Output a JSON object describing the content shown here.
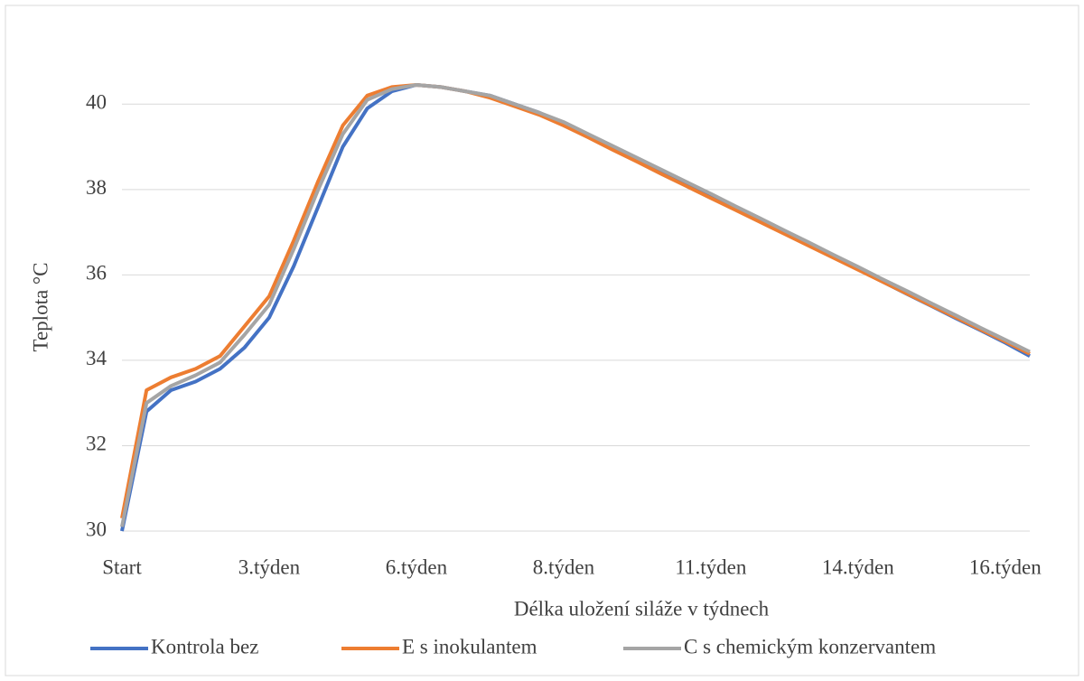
{
  "chart_data": {
    "type": "line",
    "x_label": "Délka uložení siláže v týdnech",
    "y_label": "Teplota °C",
    "categories": [
      "Start",
      null,
      null,
      null,
      null,
      null,
      "3.týden",
      null,
      null,
      null,
      null,
      null,
      "6.týden",
      null,
      null,
      null,
      null,
      null,
      "8.týden",
      null,
      null,
      null,
      null,
      null,
      "11.týden",
      null,
      null,
      null,
      null,
      null,
      "14.týden",
      null,
      null,
      null,
      null,
      null,
      "16.týden",
      null
    ],
    "series": [
      {
        "name": "Kontrola bez",
        "color": "#4472c4",
        "values": [
          30,
          32.8,
          33.3,
          33.5,
          33.8,
          34.3,
          35.0,
          36.2,
          37.6,
          39.0,
          39.9,
          40.3,
          40.45,
          40.4,
          40.3,
          40.2,
          40.0,
          39.8,
          39.55,
          39.27,
          38.98,
          38.7,
          38.41,
          38.13,
          37.84,
          37.55,
          37.27,
          36.98,
          36.7,
          36.41,
          36.13,
          35.84,
          35.55,
          35.27,
          34.98,
          34.7,
          34.41,
          34.1
        ]
      },
      {
        "name": "E s inokulantem",
        "color": "#ed7d31",
        "values": [
          30.3,
          33.3,
          33.6,
          33.8,
          34.1,
          34.8,
          35.5,
          36.8,
          38.2,
          39.5,
          40.2,
          40.4,
          40.45,
          40.4,
          40.3,
          40.15,
          39.95,
          39.75,
          39.5,
          39.22,
          38.93,
          38.65,
          38.36,
          38.08,
          37.8,
          37.52,
          37.24,
          36.96,
          36.68,
          36.4,
          36.12,
          35.84,
          35.56,
          35.28,
          35.0,
          34.72,
          34.44,
          34.15
        ]
      },
      {
        "name": "C s chemickým konzervantem",
        "color": "#a5a5a5",
        "values": [
          30.1,
          33.0,
          33.4,
          33.65,
          33.95,
          34.6,
          35.3,
          36.6,
          38.0,
          39.3,
          40.1,
          40.35,
          40.45,
          40.4,
          40.3,
          40.2,
          40.0,
          39.8,
          39.58,
          39.3,
          39.02,
          38.74,
          38.46,
          38.18,
          37.9,
          37.61,
          37.33,
          37.04,
          36.76,
          36.47,
          36.19,
          35.9,
          35.62,
          35.33,
          35.05,
          34.76,
          34.48,
          34.2
        ]
      }
    ],
    "ylim": [
      30,
      41
    ],
    "yticks": [
      30,
      32,
      34,
      36,
      38,
      40
    ],
    "grid": true,
    "legend": "bottom"
  }
}
